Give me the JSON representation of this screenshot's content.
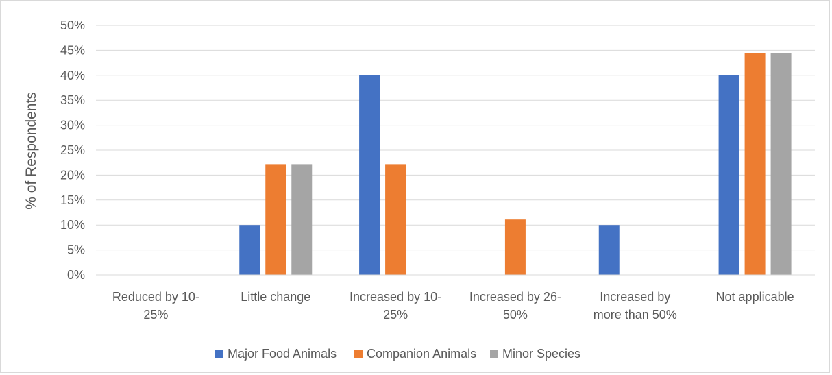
{
  "chart_data": {
    "type": "bar",
    "ylabel": "% of Respondents",
    "ylim": [
      0,
      50
    ],
    "yticks": [
      "0%",
      "5%",
      "10%",
      "15%",
      "20%",
      "25%",
      "30%",
      "35%",
      "40%",
      "45%",
      "50%"
    ],
    "categories": [
      [
        "Reduced by 10-",
        "25%"
      ],
      [
        "Little change"
      ],
      [
        "Increased by 10-",
        "25%"
      ],
      [
        "Increased by 26-",
        "50%"
      ],
      [
        "Increased by",
        "more than 50%"
      ],
      [
        "Not applicable"
      ]
    ],
    "series": [
      {
        "name": "Major Food Animals",
        "color": "#4472c4",
        "values": [
          0,
          10,
          40,
          0,
          10,
          40
        ]
      },
      {
        "name": "Companion Animals",
        "color": "#ed7d31",
        "values": [
          0,
          22.2,
          22.2,
          11.1,
          0,
          44.4
        ]
      },
      {
        "name": "Minor Species",
        "color": "#a5a5a5",
        "values": [
          0,
          22.2,
          0,
          0,
          0,
          44.4
        ]
      }
    ],
    "grid": true,
    "legend_position": "bottom"
  }
}
